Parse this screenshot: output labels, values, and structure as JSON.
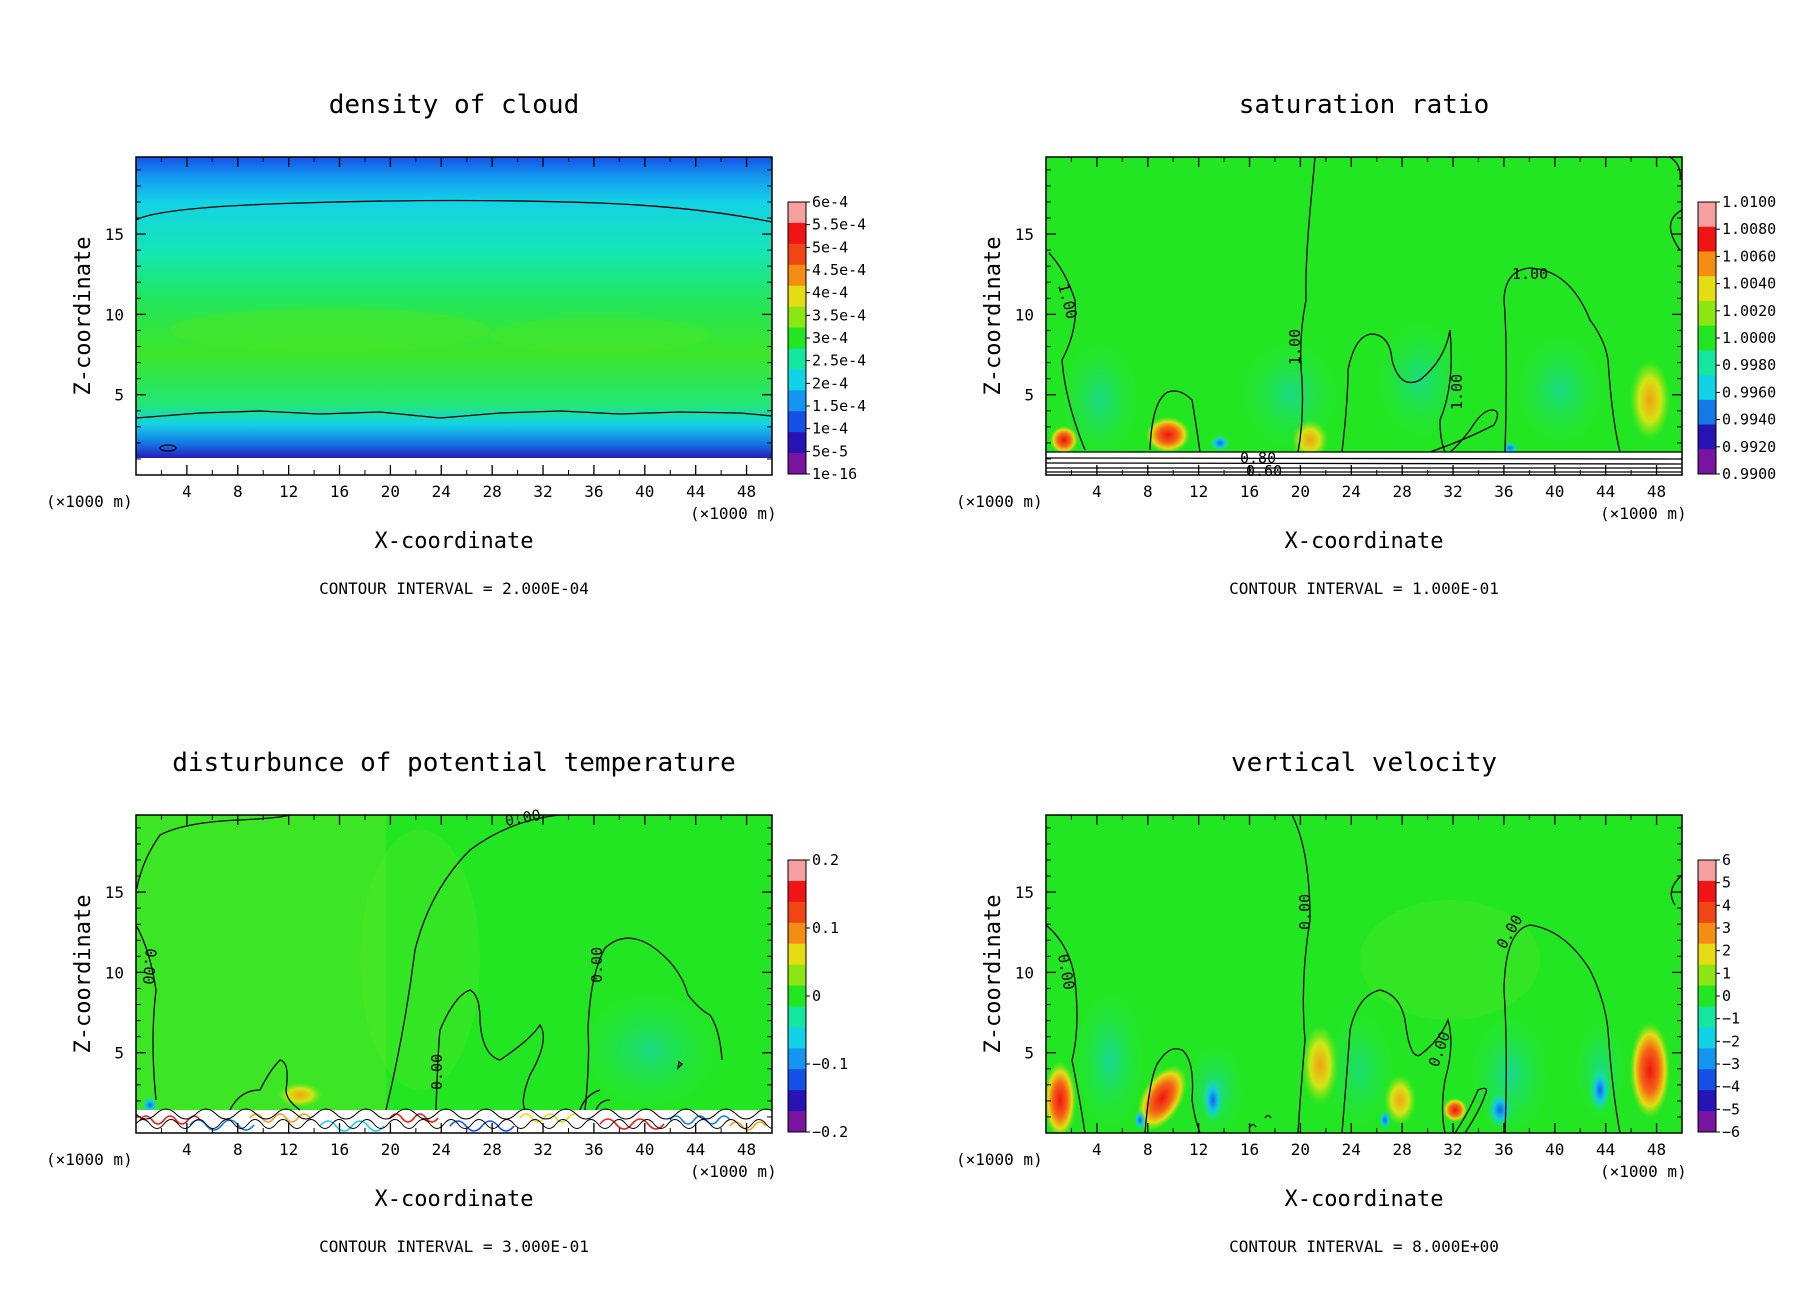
{
  "panels": [
    {
      "title": "density of cloud",
      "xlabel": "X-coordinate",
      "ylabel": "Z-coordinate",
      "xunit": "(×1000 m)",
      "yunit": "(×1000 m)",
      "contour_interval": "CONTOUR INTERVAL = 2.000E-04",
      "colorbar_labels": [
        "6e-4",
        "5.5e-4",
        "5e-4",
        "4.5e-4",
        "4e-4",
        "3.5e-4",
        "3e-4",
        "2.5e-4",
        "2e-4",
        "1.5e-4",
        "1e-4",
        "5e-5",
        "1e-16"
      ],
      "contour_labels": []
    },
    {
      "title": "saturation ratio",
      "xlabel": "X-coordinate",
      "ylabel": "Z-coordinate",
      "xunit": "(×1000 m)",
      "yunit": "(×1000 m)",
      "contour_interval": "CONTOUR INTERVAL = 1.000E-01",
      "colorbar_labels": [
        "1.0100",
        "1.0080",
        "1.0060",
        "1.0040",
        "1.0020",
        "1.0000",
        "0.9980",
        "0.9960",
        "0.9940",
        "0.9920",
        "0.9900"
      ],
      "contour_labels": [
        "1.00",
        "1.00",
        "1.00",
        "1.00",
        "0.80",
        "0.60"
      ]
    },
    {
      "title": "disturbunce of potential temperature",
      "xlabel": "X-coordinate",
      "ylabel": "Z-coordinate",
      "xunit": "(×1000 m)",
      "yunit": "(×1000 m)",
      "contour_interval": "CONTOUR INTERVAL = 3.000E-01",
      "colorbar_labels": [
        "0.2",
        "0.1",
        "0",
        "−0.1",
        "−0.2"
      ],
      "contour_labels": [
        "0.00",
        "0.00",
        "0.00",
        "0.00"
      ]
    },
    {
      "title": "vertical velocity",
      "xlabel": "X-coordinate",
      "ylabel": "Z-coordinate",
      "xunit": "(×1000 m)",
      "yunit": "(×1000 m)",
      "contour_interval": "CONTOUR INTERVAL = 8.000E+00",
      "colorbar_labels": [
        "6",
        "5",
        "4",
        "3",
        "2",
        "1",
        "0",
        "−1",
        "−2",
        "−3",
        "−4",
        "−5",
        "−6"
      ],
      "contour_labels": [
        "0.00",
        "0.00",
        "0.00",
        "0.00"
      ]
    }
  ],
  "chart_data": [
    {
      "type": "heatmap",
      "title": "density of cloud",
      "xlabel": "X-coordinate",
      "ylabel": "Z-coordinate",
      "xticks": [
        4,
        8,
        12,
        16,
        20,
        24,
        28,
        32,
        36,
        40,
        44,
        48
      ],
      "yticks": [
        5,
        10,
        15
      ],
      "xlim": [
        0,
        50
      ],
      "ylim": [
        0,
        19.8
      ],
      "colorbar": {
        "min": 1e-16,
        "max": 0.0006,
        "levels": [
          "6e-4",
          "5.5e-4",
          "5e-4",
          "4.5e-4",
          "4e-4",
          "3.5e-4",
          "3e-4",
          "2.5e-4",
          "2e-4",
          "1.5e-4",
          "1e-4",
          "5e-5",
          "1e-16"
        ]
      },
      "contour_interval": 0.0002
    },
    {
      "type": "heatmap",
      "title": "saturation ratio",
      "xlabel": "X-coordinate",
      "ylabel": "Z-coordinate",
      "xticks": [
        4,
        8,
        12,
        16,
        20,
        24,
        28,
        32,
        36,
        40,
        44,
        48
      ],
      "yticks": [
        5,
        10,
        15
      ],
      "xlim": [
        0,
        50
      ],
      "ylim": [
        0,
        19.8
      ],
      "colorbar": {
        "min": 0.99,
        "max": 1.01,
        "levels": [
          "1.0100",
          "1.0080",
          "1.0060",
          "1.0040",
          "1.0020",
          "1.0000",
          "0.9980",
          "0.9960",
          "0.9940",
          "0.9920",
          "0.9900"
        ]
      },
      "contour_interval": 0.1
    },
    {
      "type": "heatmap",
      "title": "disturbunce of potential temperature",
      "xlabel": "X-coordinate",
      "ylabel": "Z-coordinate",
      "xticks": [
        4,
        8,
        12,
        16,
        20,
        24,
        28,
        32,
        36,
        40,
        44,
        48
      ],
      "yticks": [
        5,
        10,
        15
      ],
      "xlim": [
        0,
        50
      ],
      "ylim": [
        0,
        19.8
      ],
      "colorbar": {
        "min": -0.2,
        "max": 0.2,
        "levels": [
          "0.2",
          "0.1",
          "0",
          "−0.1",
          "−0.2"
        ]
      },
      "contour_interval": 0.3
    },
    {
      "type": "heatmap",
      "title": "vertical velocity",
      "xlabel": "X-coordinate",
      "ylabel": "Z-coordinate",
      "xticks": [
        4,
        8,
        12,
        16,
        20,
        24,
        28,
        32,
        36,
        40,
        44,
        48
      ],
      "yticks": [
        5,
        10,
        15
      ],
      "xlim": [
        0,
        50
      ],
      "ylim": [
        0,
        19.8
      ],
      "colorbar": {
        "min": -6,
        "max": 6,
        "levels": [
          "6",
          "5",
          "4",
          "3",
          "2",
          "1",
          "0",
          "−1",
          "−2",
          "−3",
          "−4",
          "−5",
          "−6"
        ]
      },
      "contour_interval": 8.0
    }
  ],
  "colors": {
    "field_green": "#22e622",
    "cloud_top": "#1468e6",
    "cloud_cyan": "#14d2e6",
    "cloud_base": "#2814b4",
    "cloud_floor": "#7814a0",
    "warm": "#f02814",
    "warm_light": "#f5a014",
    "cool": "#1478e6"
  }
}
